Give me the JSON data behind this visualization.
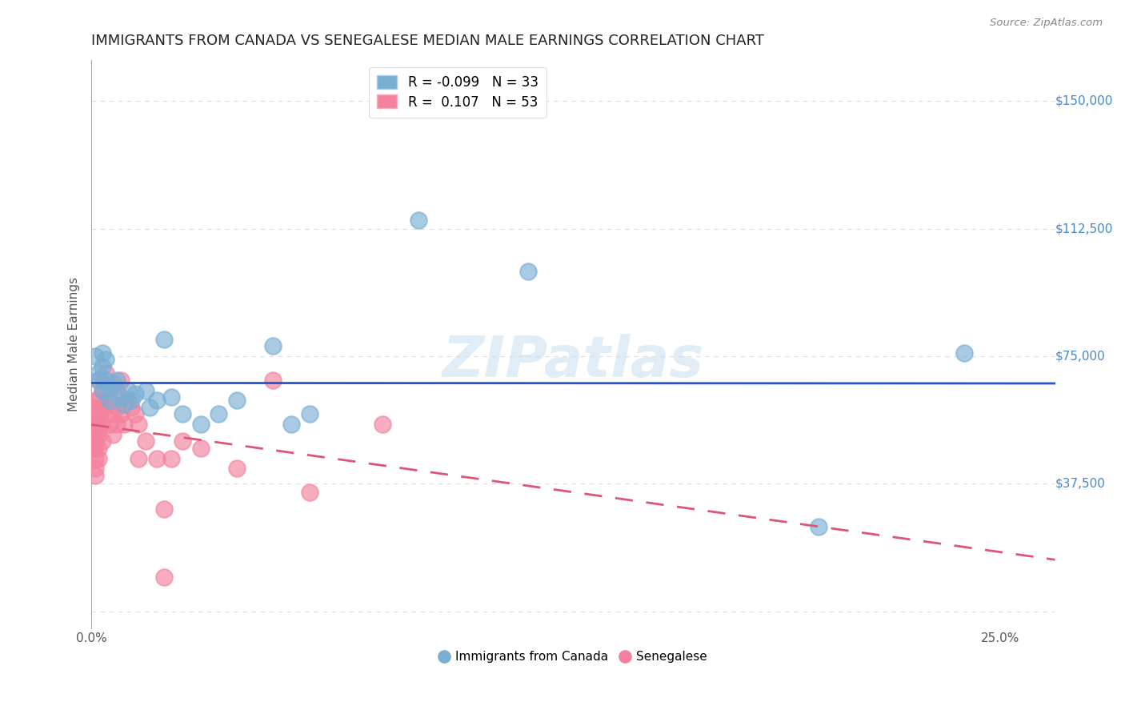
{
  "title": "IMMIGRANTS FROM CANADA VS SENEGALESE MEDIAN MALE EARNINGS CORRELATION CHART",
  "source": "Source: ZipAtlas.com",
  "xlabel_bottom": "",
  "ylabel": "Median Male Earnings",
  "y_ticks": [
    0,
    37500,
    75000,
    112500,
    150000
  ],
  "y_tick_labels": [
    "",
    "$37,500",
    "$75,000",
    "$112,500",
    "$150,000"
  ],
  "x_ticks": [
    0.0,
    0.05,
    0.1,
    0.15,
    0.2,
    0.25
  ],
  "x_tick_labels": [
    "0.0%",
    "",
    "",
    "",
    "",
    "25.0%"
  ],
  "xlim": [
    0.0,
    0.265
  ],
  "ylim": [
    -5000,
    162000
  ],
  "legend_entries": [
    {
      "label": "R = -0.099   N = 33",
      "color": "#a8c4e0"
    },
    {
      "label": "R =  0.107   N = 53",
      "color": "#f4a8b8"
    }
  ],
  "canada_scatter_x": [
    0.001,
    0.002,
    0.002,
    0.003,
    0.003,
    0.003,
    0.004,
    0.004,
    0.005,
    0.005,
    0.006,
    0.007,
    0.008,
    0.009,
    0.01,
    0.011,
    0.012,
    0.015,
    0.016,
    0.018,
    0.02,
    0.022,
    0.025,
    0.03,
    0.035,
    0.04,
    0.05,
    0.055,
    0.06,
    0.09,
    0.12,
    0.2,
    0.24
  ],
  "canada_scatter_y": [
    75000,
    70000,
    68000,
    65000,
    72000,
    76000,
    68000,
    74000,
    62000,
    65000,
    67000,
    68000,
    63000,
    61000,
    65000,
    62000,
    64000,
    65000,
    60000,
    62000,
    80000,
    63000,
    58000,
    55000,
    58000,
    62000,
    78000,
    55000,
    58000,
    115000,
    100000,
    25000,
    76000
  ],
  "senegal_scatter_x": [
    0.0005,
    0.0005,
    0.0005,
    0.0005,
    0.001,
    0.001,
    0.001,
    0.001,
    0.001,
    0.001,
    0.001,
    0.001,
    0.001,
    0.002,
    0.002,
    0.002,
    0.002,
    0.002,
    0.002,
    0.002,
    0.003,
    0.003,
    0.003,
    0.003,
    0.004,
    0.004,
    0.004,
    0.005,
    0.005,
    0.006,
    0.006,
    0.007,
    0.007,
    0.007,
    0.008,
    0.008,
    0.009,
    0.01,
    0.011,
    0.012,
    0.013,
    0.013,
    0.015,
    0.018,
    0.02,
    0.022,
    0.025,
    0.03,
    0.04,
    0.05,
    0.06,
    0.08,
    0.02
  ],
  "senegal_scatter_y": [
    60000,
    55000,
    52000,
    48000,
    62000,
    58000,
    55000,
    52000,
    50000,
    48000,
    45000,
    42000,
    40000,
    68000,
    62000,
    58000,
    55000,
    52000,
    48000,
    45000,
    65000,
    60000,
    55000,
    50000,
    70000,
    65000,
    60000,
    62000,
    55000,
    58000,
    52000,
    65000,
    60000,
    55000,
    68000,
    58000,
    55000,
    62000,
    60000,
    58000,
    55000,
    45000,
    50000,
    45000,
    30000,
    45000,
    50000,
    48000,
    42000,
    68000,
    35000,
    55000,
    10000
  ],
  "canada_color": "#7aafd4",
  "senegal_color": "#f4829e",
  "canada_line_color": "#2255cc",
  "senegal_line_color": "#dd5577",
  "watermark": "ZIPatlas",
  "grid_color": "#dddddd"
}
